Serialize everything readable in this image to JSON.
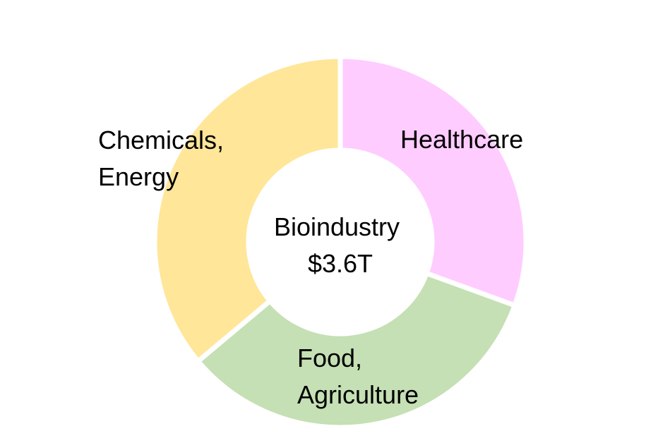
{
  "chart_data": {
    "type": "pie",
    "subtype": "donut",
    "title": "",
    "center_label": [
      "Bioindustry",
      "$3.6T"
    ],
    "start": "top, clockwise",
    "slices": [
      {
        "label": [
          "Healthcare"
        ],
        "value": 1.1,
        "color": "#FFCCFF"
      },
      {
        "label": [
          "Food,",
          "Agriculture"
        ],
        "value": 1.2,
        "color": "#C5E0B4"
      },
      {
        "label": [
          "Chemicals,",
          "Energy"
        ],
        "value": 1.3,
        "color": "#FFE699"
      }
    ]
  }
}
